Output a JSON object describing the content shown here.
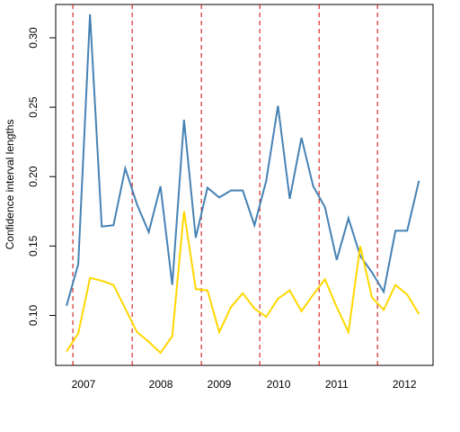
{
  "chart_data": {
    "type": "line",
    "y_label": "Confidence interval lengths",
    "x": [
      1,
      2,
      3,
      4,
      5,
      6,
      7,
      8,
      9,
      10,
      11,
      12,
      13,
      14,
      15,
      16,
      17,
      18,
      19,
      20,
      21,
      22,
      23,
      24,
      25,
      26,
      27,
      28,
      29,
      30,
      31
    ],
    "xlim": [
      0.08,
      32.2
    ],
    "ylim": [
      0.064,
      0.324
    ],
    "yticks": [
      {
        "value": 0.1,
        "label": "0.10"
      },
      0.15,
      {
        "value": 0.2,
        "label": "0.20"
      },
      0.25,
      {
        "value": 0.3,
        "label": "0.30"
      }
    ],
    "vlines": [
      1.54,
      6.59,
      12.48,
      17.45,
      22.5,
      27.47
    ],
    "vline_color": "#cc0000",
    "year_labels": [
      {
        "label": "2007",
        "x": 2.45
      },
      {
        "label": "2008",
        "x": 9.03
      },
      {
        "label": "2009",
        "x": 14.0
      },
      {
        "label": "2010",
        "x": 19.05
      },
      {
        "label": "2011",
        "x": 24.0
      },
      {
        "label": "2012",
        "x": 29.77
      }
    ],
    "series": [
      {
        "color": "#4682b4",
        "values": [
          0.107,
          0.137,
          0.317,
          0.164,
          0.165,
          0.206,
          0.18,
          0.16,
          0.193,
          0.122,
          0.241,
          0.156,
          0.192,
          0.185,
          0.19,
          0.19,
          0.165,
          0.197,
          0.251,
          0.184,
          0.228,
          0.193,
          0.178,
          0.14,
          0.17,
          0.143,
          0.131,
          0.117,
          0.161,
          0.161,
          0.197
        ]
      },
      {
        "color": "#ffd700",
        "values": [
          0.074,
          0.087,
          0.127,
          0.125,
          0.122,
          0.105,
          0.088,
          0.081,
          0.073,
          0.085,
          0.175,
          0.119,
          0.118,
          0.088,
          0.106,
          0.116,
          0.105,
          0.099,
          0.112,
          0.118,
          0.103,
          0.115,
          0.126,
          0.106,
          0.088,
          0.15,
          0.113,
          0.104,
          0.122,
          0.115,
          0.101
        ]
      }
    ]
  }
}
